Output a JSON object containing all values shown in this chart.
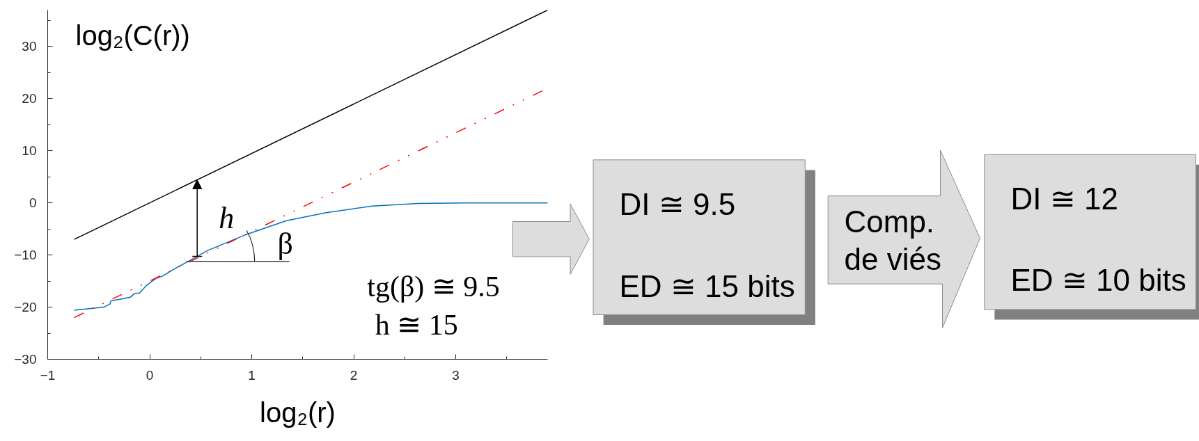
{
  "chart_data": {
    "type": "line",
    "xlabel": "log₂(r)",
    "ylabel": "log₂(C(r))",
    "xlim": [
      -1,
      3.9
    ],
    "ylim": [
      -30,
      37
    ],
    "xticks": [
      -1,
      0,
      1,
      2,
      3
    ],
    "yticks": [
      -30,
      -20,
      -10,
      0,
      10,
      20,
      30
    ],
    "series": [
      {
        "color": "#000000",
        "x": [
          -0.74,
          3.9
        ],
        "values": [
          -7,
          37
        ]
      },
      {
        "color": "#0072bd",
        "x": [
          -0.74,
          -0.45,
          -0.39,
          -0.38,
          -0.29,
          -0.19,
          -0.15,
          -0.1,
          -0.03,
          0.06,
          0.13,
          0.22,
          0.38,
          0.56,
          0.94,
          1.34,
          1.72,
          2.18,
          2.63,
          3.09,
          3.9
        ],
        "values": [
          -20.6,
          -20.0,
          -19.4,
          -18.8,
          -18.5,
          -18.1,
          -17.4,
          -17.3,
          -15.8,
          -14.5,
          -14.0,
          -12.9,
          -11.2,
          -9.2,
          -6.1,
          -3.4,
          -1.9,
          -0.6,
          -0.1,
          0,
          0
        ]
      },
      {
        "color": "#ff0000",
        "x": [
          -0.74,
          3.9
        ],
        "values": [
          -22,
          22
        ],
        "line_style": "dashed"
      }
    ],
    "annotations": [
      "h",
      {
        "text": "β",
        "x": 0.4,
        "y": -11.2
      },
      "tg(β) ≅ 9.5",
      "h ≅ 15",
      "DI ≅ 9.5",
      "ED ≅ 15 bits",
      "Comp. de viés",
      "DI ≅ 12",
      "ED ≅ 10 bits"
    ]
  }
}
